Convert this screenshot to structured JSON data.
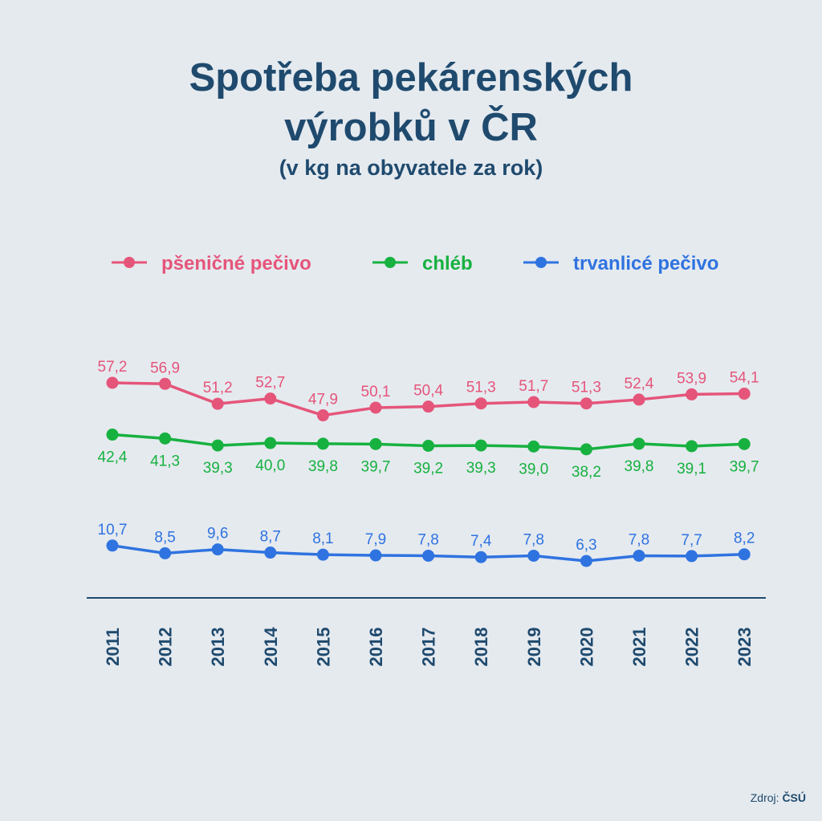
{
  "title_line1": "Spotřeba pekárenských",
  "title_line2": "výrobků v ČR",
  "subtitle": "(v kg na obyvatele za rok)",
  "source_label": "Zdroj:",
  "source_name": "ČSÚ",
  "colors": {
    "background": "#e5eaef",
    "text": "#1f4a6e",
    "axis": "#1f4a6e"
  },
  "chart_data": {
    "type": "line",
    "x": [
      "2011",
      "2012",
      "2013",
      "2014",
      "2015",
      "2016",
      "2017",
      "2018",
      "2019",
      "2020",
      "2021",
      "2022",
      "2023"
    ],
    "legend_position": "top",
    "grid": false,
    "series": [
      {
        "name": "pšeničné pečivo",
        "color": "#e5557a",
        "label_position": "above",
        "values": [
          57.2,
          56.9,
          51.2,
          52.7,
          47.9,
          50.1,
          50.4,
          51.3,
          51.7,
          51.3,
          52.4,
          53.9,
          54.1
        ],
        "labels": [
          "57,2",
          "56,9",
          "51,2",
          "52,7",
          "47,9",
          "50,1",
          "50,4",
          "51,3",
          "51,7",
          "51,3",
          "52,4",
          "53,9",
          "54,1"
        ]
      },
      {
        "name": "chléb",
        "color": "#17b140",
        "label_position": "below",
        "values": [
          42.4,
          41.3,
          39.3,
          40.0,
          39.8,
          39.7,
          39.2,
          39.3,
          39.0,
          38.2,
          39.8,
          39.1,
          39.7
        ],
        "labels": [
          "42,4",
          "41,3",
          "39,3",
          "40,0",
          "39,8",
          "39,7",
          "39,2",
          "39,3",
          "39,0",
          "38,2",
          "39,8",
          "39,1",
          "39,7"
        ]
      },
      {
        "name": "trvanlicé pečivo",
        "color": "#2f73e0",
        "label_position": "above",
        "values": [
          10.7,
          8.5,
          9.6,
          8.7,
          8.1,
          7.9,
          7.8,
          7.4,
          7.8,
          6.3,
          7.8,
          7.7,
          8.2
        ],
        "labels": [
          "10,7",
          "8,5",
          "9,6",
          "8,7",
          "8,1",
          "7,9",
          "7,8",
          "7,4",
          "7,8",
          "6,3",
          "7,8",
          "7,7",
          "8,2"
        ]
      }
    ]
  }
}
